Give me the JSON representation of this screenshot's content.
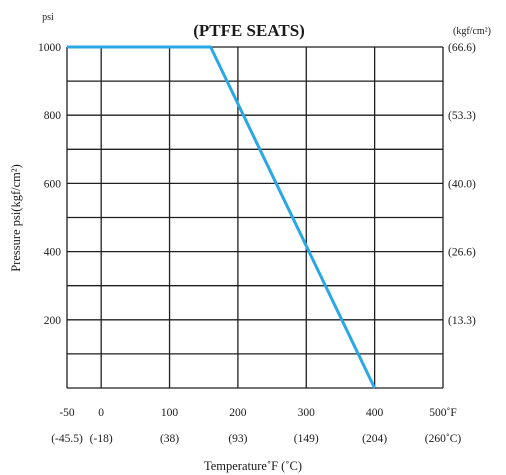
{
  "chart_data": {
    "type": "line",
    "title": "(PTFE SEATS)",
    "ylabel": "Pressure  psi(kgf/cm²)",
    "xlabel": "Temperature˚F (˚C)",
    "left_unit": "psi",
    "right_unit": "(kgf/cm²)",
    "xlim": [
      -50,
      500
    ],
    "ylim": [
      0,
      1000
    ],
    "grid": true,
    "x_ticks": [
      {
        "value": -50,
        "label": "-50",
        "sub": "(-45.5)"
      },
      {
        "value": 0,
        "label": "0",
        "sub": "(-18)"
      },
      {
        "value": 100,
        "label": "100",
        "sub": "(38)"
      },
      {
        "value": 200,
        "label": "200",
        "sub": "(93)"
      },
      {
        "value": 300,
        "label": "300",
        "sub": "(149)"
      },
      {
        "value": 400,
        "label": "400",
        "sub": "(204)"
      },
      {
        "value": 500,
        "label": "500˚F",
        "sub": "(260˚C)"
      }
    ],
    "y_ticks_left": [
      {
        "value": 1000,
        "label": "1000"
      },
      {
        "value": 800,
        "label": "800"
      },
      {
        "value": 600,
        "label": "600"
      },
      {
        "value": 400,
        "label": "400"
      },
      {
        "value": 200,
        "label": "200"
      }
    ],
    "y_ticks_right": [
      {
        "value": 1000,
        "label": "(66.6)"
      },
      {
        "value": 800,
        "label": "(53.3)"
      },
      {
        "value": 600,
        "label": "(40.0)"
      },
      {
        "value": 400,
        "label": "(26.6)"
      },
      {
        "value": 200,
        "label": "(13.3)"
      }
    ],
    "x_grid": [
      -50,
      0,
      100,
      200,
      300,
      400,
      500
    ],
    "y_grid": [
      0,
      100,
      200,
      300,
      400,
      500,
      600,
      700,
      800,
      900,
      1000
    ],
    "series": [
      {
        "x": [
          -50,
          160,
          400
        ],
        "y": [
          1000,
          1000,
          0
        ],
        "color": "#2aa7e6"
      }
    ]
  }
}
